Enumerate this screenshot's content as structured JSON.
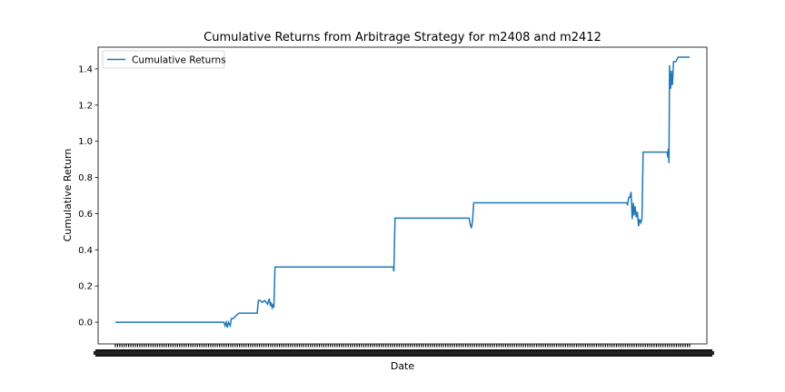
{
  "chart_data": {
    "type": "line",
    "title": "Cumulative Returns from Arbitrage Strategy for m2408 and m2412",
    "xlabel": "Date",
    "ylabel": "Cumulative Return",
    "ylim": [
      -0.12,
      1.52
    ],
    "yticks": [
      0.0,
      0.2,
      0.4,
      0.6,
      0.8,
      1.0,
      1.2,
      1.4
    ],
    "ytick_labels": [
      "0.0",
      "0.2",
      "0.4",
      "0.6",
      "0.8",
      "1.0",
      "1.2",
      "1.4"
    ],
    "xlim": [
      -3,
      103
    ],
    "grid": false,
    "legend": {
      "position": "top-left",
      "entries": [
        "Cumulative Returns"
      ]
    },
    "series": [
      {
        "name": "Cumulative Returns",
        "color": "#1f77b4",
        "x": [
          0,
          18.9,
          19.1,
          19.3,
          19.5,
          19.7,
          20.0,
          20.2,
          20.5,
          21.5,
          21.7,
          24.7,
          24.9,
          25.2,
          25.6,
          26.0,
          26.5,
          26.8,
          27.0,
          27.1,
          27.3,
          27.5,
          27.6,
          27.8,
          48.4,
          48.5,
          48.7,
          61.6,
          61.8,
          62.0,
          62.2,
          62.4,
          89.0,
          89.2,
          89.4,
          89.6,
          89.8,
          90.0,
          90.2,
          90.3,
          90.5,
          90.7,
          90.9,
          91.1,
          91.3,
          91.5,
          91.7,
          91.9,
          96.1,
          96.2,
          96.3,
          96.4,
          96.5,
          96.6,
          96.7,
          96.8,
          97.0,
          97.2,
          97.6,
          98.0,
          100.0
        ],
        "y": [
          0.0,
          0.0,
          -0.02,
          0.0,
          -0.03,
          0.0,
          -0.02,
          0.02,
          0.02,
          0.05,
          0.05,
          0.05,
          0.12,
          0.12,
          0.11,
          0.12,
          0.1,
          0.13,
          0.09,
          0.11,
          0.08,
          0.1,
          0.08,
          0.305,
          0.305,
          0.28,
          0.575,
          0.575,
          0.54,
          0.52,
          0.56,
          0.66,
          0.66,
          0.65,
          0.69,
          0.69,
          0.72,
          0.57,
          0.66,
          0.59,
          0.64,
          0.58,
          0.61,
          0.53,
          0.57,
          0.55,
          0.57,
          0.94,
          0.94,
          0.91,
          0.96,
          0.88,
          1.42,
          1.31,
          1.29,
          1.39,
          1.31,
          1.44,
          1.44,
          1.465,
          1.465
        ]
      }
    ]
  }
}
